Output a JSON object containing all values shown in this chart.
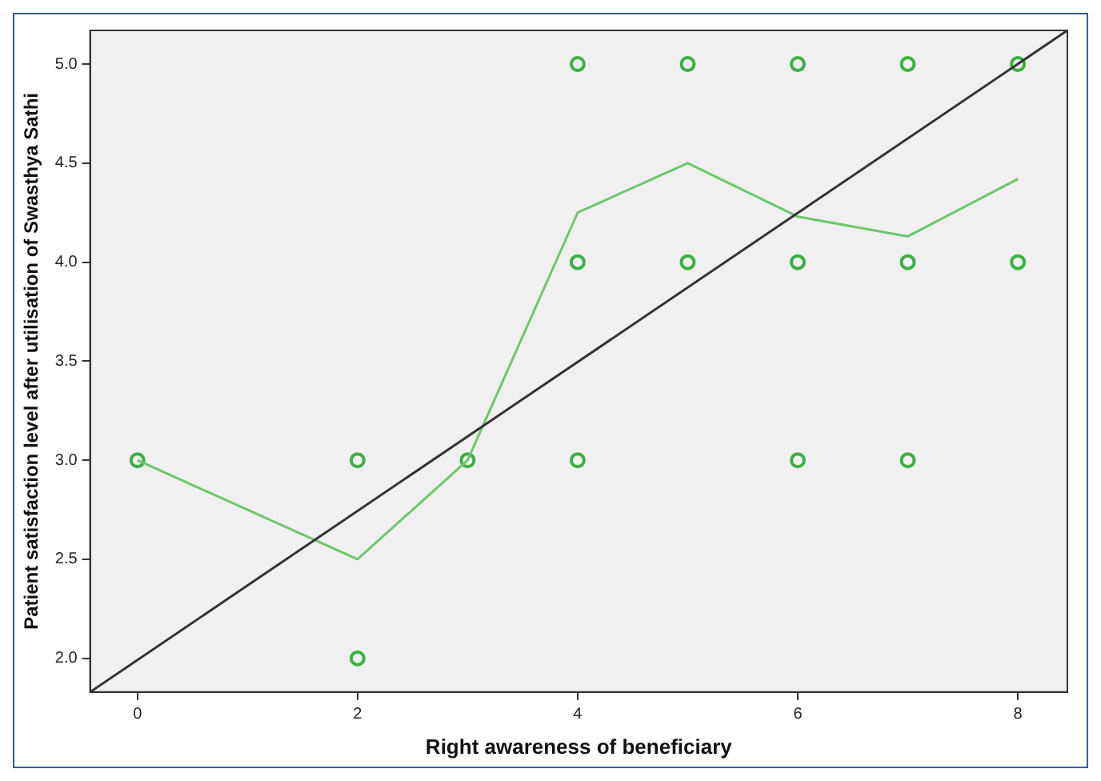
{
  "chart_data": {
    "type": "scatter",
    "xlabel": "Right awareness of beneficiary",
    "ylabel": "Patient satisfaction level after utilisation of Swasthya Sathi",
    "xlim": [
      -0.43,
      8.45
    ],
    "ylim": [
      1.83,
      5.17
    ],
    "xticks": [
      0,
      2,
      4,
      6,
      8
    ],
    "yticks": [
      {
        "value": 2,
        "label": "2.0"
      },
      {
        "value": 2.5,
        "label": "2.5"
      },
      {
        "value": 3,
        "label": "3.0"
      },
      {
        "value": 3.5,
        "label": "3.5"
      },
      {
        "value": 4,
        "label": "4.0"
      },
      {
        "value": 4.5,
        "label": "4.5"
      },
      {
        "value": 5,
        "label": "5.0"
      }
    ],
    "grid": false,
    "legend": false,
    "marker": "circle",
    "series": [
      {
        "type": "scatter",
        "color": "#3cb043",
        "x": [
          0,
          2,
          2,
          3,
          4,
          4,
          4,
          5,
          5,
          6,
          6,
          6,
          7,
          7,
          7,
          8,
          8
        ],
        "values": [
          3,
          3,
          2,
          3,
          5,
          4,
          3,
          5,
          4,
          5,
          4,
          3,
          5,
          4,
          3,
          5,
          4
        ]
      },
      {
        "type": "line",
        "color": "#6cc76c",
        "marker": "none",
        "x": [
          0,
          2,
          3,
          4,
          5,
          6,
          7,
          8
        ],
        "values": [
          3,
          2.5,
          3,
          4.25,
          4.5,
          4.23,
          4.13,
          4.42
        ]
      },
      {
        "type": "line",
        "color": "#333333",
        "marker": "none",
        "x": [
          -0.43,
          8.45
        ],
        "values": [
          1.83,
          5.17
        ]
      }
    ]
  }
}
